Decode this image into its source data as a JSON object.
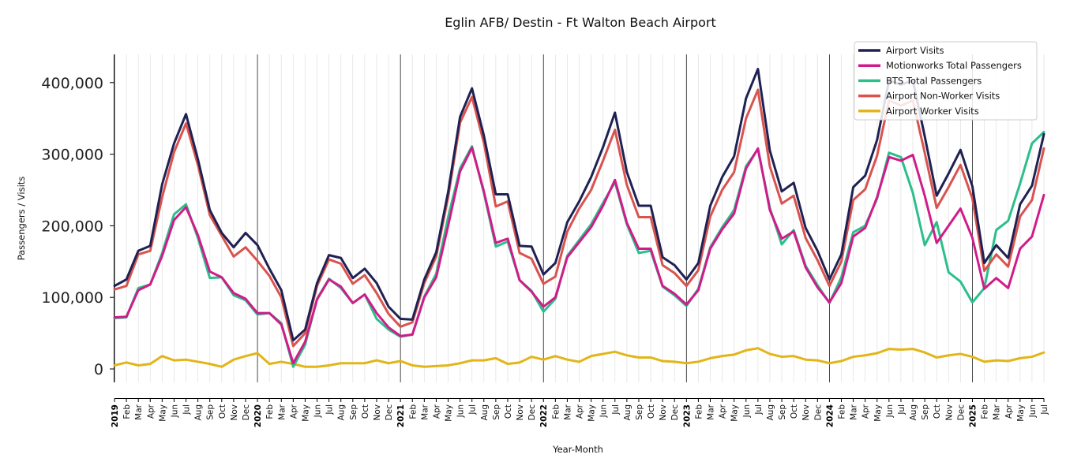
{
  "chart_data": {
    "type": "line",
    "title": "Eglin AFB/ Destin - Ft Walton Beach Airport",
    "xlabel": "Year-Month",
    "ylabel": "Passengers / Visits",
    "ylim": [
      -18000,
      440000
    ],
    "yticks": [
      0,
      100000,
      200000,
      300000,
      400000
    ],
    "ytick_labels": [
      "0",
      "100,000",
      "200,000",
      "300,000",
      "400,000"
    ],
    "legend_position": "top-right",
    "x": [
      "2019",
      "Feb",
      "Mar",
      "Apr",
      "May",
      "Jun",
      "Jul",
      "Aug",
      "Sep",
      "Oct",
      "Nov",
      "Dec",
      "2020",
      "Feb",
      "Mar",
      "Apr",
      "May",
      "Jun",
      "Jul",
      "Aug",
      "Sep",
      "Oct",
      "Nov",
      "Dec",
      "2021",
      "Feb",
      "Mar",
      "Apr",
      "May",
      "Jun",
      "Jul",
      "Aug",
      "Sep",
      "Oct",
      "Nov",
      "Dec",
      "2022",
      "Feb",
      "Mar",
      "Apr",
      "May",
      "Jun",
      "Jul",
      "Aug",
      "Sep",
      "Oct",
      "Nov",
      "Dec",
      "2023",
      "Feb",
      "Mar",
      "Apr",
      "May",
      "Jun",
      "Jul",
      "Aug",
      "Sep",
      "Oct",
      "Nov",
      "Dec",
      "2024",
      "Feb",
      "Mar",
      "Apr",
      "May",
      "Jun",
      "Jul",
      "Aug",
      "Sep",
      "Oct",
      "Nov",
      "Dec",
      "2025",
      "Feb",
      "Mar",
      "Apr",
      "May",
      "Jun",
      "Jul"
    ],
    "year_start_indices": [
      0,
      12,
      24,
      36,
      48,
      60,
      72
    ],
    "series": [
      {
        "name": "Airport Visits",
        "color": "#1f2152",
        "values": [
          116000,
          125000,
          165000,
          172000,
          258000,
          315000,
          356000,
          293000,
          222000,
          190000,
          170000,
          190000,
          173000,
          140000,
          110000,
          40000,
          55000,
          120000,
          159000,
          155000,
          127000,
          140000,
          120000,
          87000,
          70000,
          69000,
          125000,
          163000,
          247000,
          352000,
          392000,
          326000,
          244000,
          244000,
          172000,
          171000,
          132000,
          148000,
          205000,
          234000,
          268000,
          310000,
          358000,
          275000,
          228000,
          228000,
          156000,
          145000,
          125000,
          148000,
          228000,
          268000,
          297000,
          378000,
          419000,
          305000,
          248000,
          260000,
          197000,
          165000,
          125000,
          160000,
          254000,
          270000,
          320000,
          403000,
          397000,
          403000,
          325000,
          242000,
          273000,
          306000,
          255000,
          148000,
          173000,
          155000,
          230000,
          256000,
          328000
        ]
      },
      {
        "name": "Motionworks Total Passengers",
        "color": "#d01c8b",
        "values": [
          72000,
          73000,
          110000,
          118000,
          158000,
          208000,
          226000,
          187000,
          136000,
          128000,
          106000,
          98000,
          78000,
          78000,
          62000,
          8000,
          38000,
          97000,
          125000,
          115000,
          92000,
          104000,
          78000,
          58000,
          46000,
          48000,
          100000,
          128000,
          200000,
          276000,
          309000,
          248000,
          176000,
          182000,
          124000,
          108000,
          87000,
          100000,
          156000,
          177000,
          198000,
          228000,
          264000,
          204000,
          168000,
          168000,
          116000,
          105000,
          90000,
          110000,
          168000,
          195000,
          217000,
          280000,
          308000,
          222000,
          182000,
          192000,
          142000,
          114000,
          93000,
          120000,
          185000,
          197000,
          240000,
          296000,
          291000,
          299000,
          242000,
          176000,
          200000,
          224000,
          183000,
          112000,
          127000,
          113000,
          168000,
          185000,
          243000
        ]
      },
      {
        "name": "BTS Total Passengers",
        "color": "#2bbf8a",
        "values": [
          71000,
          72000,
          113000,
          118000,
          162000,
          216000,
          230000,
          183000,
          127000,
          128000,
          103000,
          96000,
          76000,
          78000,
          64000,
          3000,
          34000,
          98000,
          126000,
          113000,
          92000,
          104000,
          70000,
          55000,
          45000,
          48000,
          101000,
          133000,
          212000,
          280000,
          311000,
          246000,
          171000,
          178000,
          124000,
          109000,
          80000,
          98000,
          158000,
          180000,
          202000,
          232000,
          261000,
          202000,
          162000,
          165000,
          115000,
          103000,
          88000,
          112000,
          170000,
          198000,
          222000,
          283000,
          307000,
          225000,
          174000,
          194000,
          144000,
          117000,
          92000,
          128000,
          191000,
          200000,
          238000,
          302000,
          296000,
          246000,
          173000,
          205000,
          135000,
          122000,
          93000,
          113000,
          194000,
          207000,
          259000,
          315000,
          331000
        ]
      },
      {
        "name": "Airport Non-Worker Visits",
        "color": "#d9534f",
        "values": [
          111000,
          116000,
          160000,
          165000,
          240000,
          303000,
          343000,
          285000,
          215000,
          186000,
          157000,
          170000,
          151000,
          130000,
          100000,
          32000,
          50000,
          116000,
          153000,
          147000,
          119000,
          131000,
          106000,
          77000,
          59000,
          65000,
          120000,
          157000,
          240000,
          344000,
          380000,
          316000,
          227000,
          234000,
          162000,
          154000,
          119000,
          129000,
          192000,
          224000,
          250000,
          291000,
          334000,
          257000,
          212000,
          212000,
          145000,
          134000,
          116000,
          138000,
          213000,
          250000,
          275000,
          350000,
          390000,
          283000,
          231000,
          242000,
          183000,
          152000,
          116000,
          150000,
          236000,
          251000,
          298000,
          375000,
          368000,
          375000,
          302000,
          225000,
          254000,
          285000,
          238000,
          137000,
          160000,
          143000,
          213000,
          236000,
          308000
        ]
      },
      {
        "name": "Airport Worker Visits",
        "color": "#e2b518",
        "values": [
          5000,
          9000,
          5000,
          7000,
          18000,
          12000,
          13000,
          10000,
          7000,
          3000,
          13000,
          18000,
          22000,
          7000,
          10000,
          7000,
          3000,
          3000,
          5000,
          8000,
          8000,
          8000,
          12000,
          8000,
          11000,
          5000,
          3000,
          4000,
          5000,
          8000,
          12000,
          12000,
          15000,
          7000,
          9000,
          17000,
          13000,
          18000,
          13000,
          10000,
          18000,
          21000,
          24000,
          19000,
          16000,
          16000,
          11000,
          10000,
          8000,
          10000,
          15000,
          18000,
          20000,
          26000,
          29000,
          21000,
          17000,
          18000,
          13000,
          12000,
          8000,
          11000,
          17000,
          19000,
          22000,
          28000,
          27000,
          28000,
          23000,
          16000,
          19000,
          21000,
          17000,
          10000,
          12000,
          11000,
          15000,
          17000,
          23000
        ]
      }
    ]
  }
}
